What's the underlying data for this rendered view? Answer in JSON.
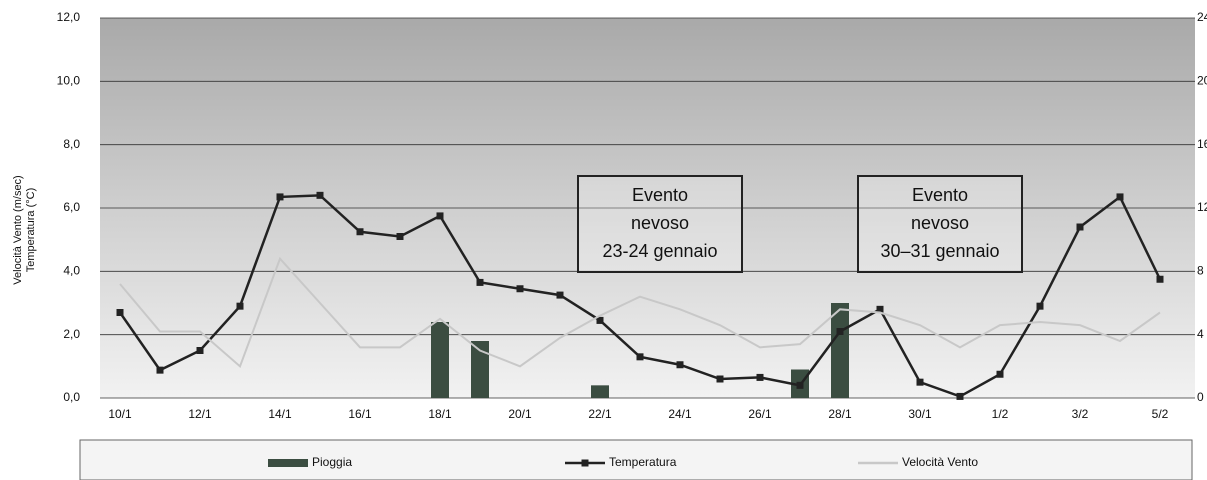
{
  "chart_data": {
    "type": "combo",
    "y_label": [
      "Velocità Vento (m/sec)",
      "Temperatura (°C)"
    ],
    "categories": [
      "10/1",
      null,
      "12/1",
      null,
      "14/1",
      null,
      "16/1",
      null,
      "18/1",
      null,
      "20/1",
      null,
      "22/1",
      null,
      "24/1",
      null,
      "26/1",
      null,
      "28/1",
      null,
      "30/1",
      null,
      "1/2",
      null,
      "3/2",
      null,
      "5/2"
    ],
    "series": [
      {
        "name": "Pioggia",
        "type": "bar",
        "axis": "y2",
        "color": "#3b4d41",
        "values": [
          0,
          0,
          0,
          0,
          0,
          0,
          0,
          0,
          4.8,
          3.6,
          0,
          0,
          0.8,
          0,
          0,
          0,
          0,
          1.8,
          6.0,
          0,
          0,
          0,
          0,
          0,
          0,
          0,
          0
        ]
      },
      {
        "name": "Temperatura",
        "type": "line",
        "color": "#222222",
        "values": [
          2.7,
          0.88,
          1.5,
          2.9,
          6.35,
          6.4,
          5.25,
          5.1,
          5.75,
          3.65,
          3.45,
          3.25,
          2.45,
          1.3,
          1.05,
          0.6,
          0.65,
          0.4,
          2.1,
          2.8,
          0.5,
          0.05,
          0.75,
          2.9,
          5.4,
          6.35,
          3.75
        ]
      },
      {
        "name": "Velocità Vento",
        "type": "line",
        "color": "#c8c8c8",
        "values": [
          3.6,
          2.1,
          2.1,
          1.0,
          4.4,
          3.0,
          1.6,
          1.6,
          2.5,
          1.5,
          1.0,
          1.9,
          2.6,
          3.2,
          2.8,
          2.3,
          1.6,
          1.7,
          2.8,
          2.7,
          2.3,
          1.6,
          2.3,
          2.4,
          2.3,
          1.8,
          2.7
        ]
      }
    ],
    "ylim": [
      0,
      12
    ],
    "yticks": [
      {
        "value": 0,
        "label": "0,0"
      },
      {
        "value": 2,
        "label": "2,0"
      },
      {
        "value": 4,
        "label": "4,0"
      },
      {
        "value": 6,
        "label": "6,0"
      },
      {
        "value": 8,
        "label": "8,0"
      },
      {
        "value": 10,
        "label": "10,0"
      },
      {
        "value": 12,
        "label": "12,0"
      }
    ],
    "y2lim": [
      0,
      24
    ],
    "y2ticks": [
      0,
      4,
      8,
      12,
      16,
      20,
      24
    ],
    "grid": true,
    "annotations": [
      {
        "lines": [
          "Evento",
          "nevoso",
          "23-24 gennaio"
        ],
        "x_category": 13.5
      },
      {
        "lines": [
          "Evento",
          "nevoso",
          "30–31 gennaio"
        ],
        "x_category": 20.5
      }
    ]
  }
}
